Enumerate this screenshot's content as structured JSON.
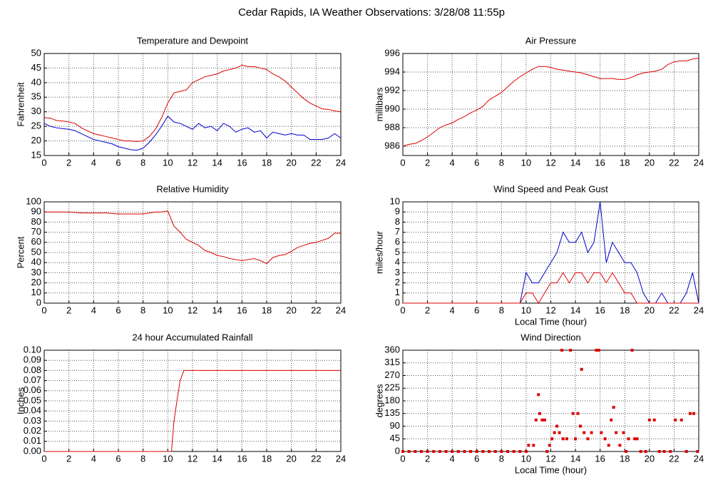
{
  "title": "Cedar Rapids, IA Weather Observations: 3/28/08 11:55p",
  "chart_data": [
    {
      "type": "line",
      "title": "Temperature and Dewpoint",
      "ylabel": "Fahrenheit",
      "x": [
        0,
        0.5,
        1,
        1.5,
        2,
        2.5,
        3,
        3.5,
        4,
        4.5,
        5,
        5.5,
        6,
        6.5,
        7,
        7.5,
        8,
        8.5,
        9,
        9.5,
        10,
        10.5,
        11,
        11.5,
        12,
        12.5,
        13,
        13.5,
        14,
        14.5,
        15,
        15.5,
        16,
        16.5,
        17,
        17.5,
        18,
        18.5,
        19,
        19.5,
        20,
        20.5,
        21,
        21.5,
        22,
        22.5,
        23,
        23.5,
        24
      ],
      "series": [
        {
          "color": "#dd0000",
          "values": [
            28,
            27.8,
            27,
            26.8,
            26.5,
            26,
            24.5,
            23.5,
            22.5,
            22,
            21.5,
            21,
            20.5,
            20,
            20,
            19.8,
            20,
            21.5,
            24,
            28,
            33,
            36.5,
            37,
            37.5,
            40,
            41,
            42,
            42.5,
            43,
            44,
            44.5,
            45,
            46,
            45.5,
            45.5,
            45,
            44.5,
            43,
            42,
            40.5,
            38.5,
            36.5,
            34.5,
            33,
            32,
            31,
            30.8,
            30.3,
            30
          ]
        },
        {
          "color": "#0000cc",
          "values": [
            26,
            25,
            24.5,
            24.2,
            24,
            23.5,
            22.5,
            21.5,
            20.5,
            20,
            19.5,
            19,
            18,
            17.5,
            17,
            16.8,
            17.5,
            19.5,
            22,
            25,
            28.5,
            26.5,
            26,
            25,
            24,
            26,
            24.5,
            25,
            23.5,
            26,
            25,
            23,
            24,
            24.5,
            23,
            23.5,
            21,
            23,
            22.5,
            22,
            22.5,
            22,
            22,
            20.5,
            20.5,
            20.5,
            21,
            22.5,
            21
          ]
        }
      ],
      "xlim": [
        0,
        24
      ],
      "xticks": [
        0,
        2,
        4,
        6,
        8,
        10,
        12,
        14,
        16,
        18,
        20,
        22,
        24
      ],
      "ylim": [
        15,
        50
      ],
      "yticks": [
        15,
        20,
        25,
        30,
        35,
        40,
        45,
        50
      ],
      "grid": true
    },
    {
      "type": "line",
      "title": "Air Pressure",
      "ylabel": "millibars",
      "x": [
        0,
        0.5,
        1,
        1.5,
        2,
        2.5,
        3,
        3.5,
        4,
        4.5,
        5,
        5.5,
        6,
        6.5,
        7,
        7.5,
        8,
        8.5,
        9,
        9.5,
        10,
        10.5,
        11,
        11.5,
        12,
        12.5,
        13,
        13.5,
        14,
        14.5,
        15,
        15.5,
        16,
        16.5,
        17,
        17.5,
        18,
        18.5,
        19,
        19.5,
        20,
        20.5,
        21,
        21.5,
        22,
        22.5,
        23,
        23.5,
        24
      ],
      "series": [
        {
          "color": "#dd0000",
          "values": [
            986,
            986.2,
            986.3,
            986.6,
            987,
            987.5,
            988,
            988.3,
            988.5,
            988.9,
            989.2,
            989.6,
            989.9,
            990.3,
            991,
            991.4,
            991.8,
            992.4,
            993,
            993.5,
            993.9,
            994.3,
            994.6,
            994.6,
            994.5,
            994.3,
            994.2,
            994.1,
            994,
            993.9,
            993.7,
            993.5,
            993.3,
            993.3,
            993.3,
            993.2,
            993.2,
            993.4,
            993.7,
            993.9,
            994,
            994.1,
            994.3,
            994.8,
            995.1,
            995.2,
            995.2,
            995.4,
            995.5
          ]
        }
      ],
      "xlim": [
        0,
        24
      ],
      "xticks": [
        0,
        2,
        4,
        6,
        8,
        10,
        12,
        14,
        16,
        18,
        20,
        22,
        24
      ],
      "ylim": [
        985,
        996
      ],
      "yticks": [
        986,
        988,
        990,
        992,
        994,
        996
      ],
      "grid": true
    },
    {
      "type": "line",
      "title": "Relative Humidity",
      "ylabel": "Percent",
      "x": [
        0,
        0.5,
        1,
        1.5,
        2,
        2.5,
        3,
        3.5,
        4,
        4.5,
        5,
        5.5,
        6,
        6.5,
        7,
        7.5,
        8,
        8.5,
        9,
        9.5,
        10,
        10.5,
        11,
        11.5,
        12,
        12.5,
        13,
        13.5,
        14,
        14.5,
        15,
        15.5,
        16,
        16.5,
        17,
        17.5,
        18,
        18.5,
        19,
        19.5,
        20,
        20.5,
        21,
        21.5,
        22,
        22.5,
        23,
        23.5,
        24
      ],
      "series": [
        {
          "color": "#dd0000",
          "values": [
            90,
            90,
            90,
            90,
            90,
            89.5,
            89,
            89,
            89,
            89,
            89,
            88.5,
            88,
            88,
            88,
            88,
            88,
            89,
            90,
            90,
            91,
            76,
            70,
            63,
            60,
            57,
            52,
            50,
            47,
            46,
            44,
            43,
            42,
            43,
            44,
            42,
            39,
            45,
            47,
            48,
            51,
            55,
            57,
            59,
            60,
            62,
            64,
            69,
            69
          ]
        }
      ],
      "xlim": [
        0,
        24
      ],
      "xticks": [
        0,
        2,
        4,
        6,
        8,
        10,
        12,
        14,
        16,
        18,
        20,
        22,
        24
      ],
      "ylim": [
        0,
        100
      ],
      "yticks": [
        0,
        10,
        20,
        30,
        40,
        50,
        60,
        70,
        80,
        90,
        100
      ],
      "grid": true
    },
    {
      "type": "line",
      "title": "Wind Speed and Peak Gust",
      "ylabel": "miles/hour",
      "xlabel": "Local Time (hour)",
      "x": [
        0,
        0.5,
        1,
        1.5,
        2,
        2.5,
        3,
        3.5,
        4,
        4.5,
        5,
        5.5,
        6,
        6.5,
        7,
        7.5,
        8,
        8.5,
        9,
        9.5,
        10,
        10.5,
        11,
        11.5,
        12,
        12.5,
        13,
        13.5,
        14,
        14.5,
        15,
        15.5,
        16,
        16.5,
        17,
        17.5,
        18,
        18.5,
        19,
        19.5,
        20,
        20.5,
        21,
        21.5,
        22,
        22.5,
        23,
        23.5,
        24
      ],
      "series": [
        {
          "color": "#0000cc",
          "values": [
            0,
            0,
            0,
            0,
            0,
            0,
            0,
            0,
            0,
            0,
            0,
            0,
            0,
            0,
            0,
            0,
            0,
            0,
            0,
            0,
            3,
            2,
            2,
            3,
            4,
            5,
            7,
            6,
            6,
            7,
            5,
            6,
            10,
            4,
            6,
            5,
            4,
            4,
            3,
            1,
            0,
            0,
            1,
            0,
            0,
            0,
            1,
            3,
            0
          ]
        },
        {
          "color": "#dd0000",
          "values": [
            0,
            0,
            0,
            0,
            0,
            0,
            0,
            0,
            0,
            0,
            0,
            0,
            0,
            0,
            0,
            0,
            0,
            0,
            0,
            0,
            1,
            1,
            0,
            1,
            2,
            2,
            3,
            2,
            3,
            3,
            2,
            3,
            3,
            2,
            3,
            2,
            1,
            1,
            0,
            0,
            0,
            0,
            0,
            0,
            0,
            0,
            0,
            0,
            0
          ]
        }
      ],
      "xlim": [
        0,
        24
      ],
      "xticks": [
        0,
        2,
        4,
        6,
        8,
        10,
        12,
        14,
        16,
        18,
        20,
        22,
        24
      ],
      "ylim": [
        0,
        10
      ],
      "yticks": [
        0,
        1,
        2,
        3,
        4,
        5,
        6,
        7,
        8,
        9,
        10
      ],
      "grid": true
    },
    {
      "type": "line",
      "title": "24 hour Accumulated Rainfall",
      "ylabel": "Inches",
      "x": [
        0,
        10.3,
        10.5,
        10.8,
        11,
        11.3,
        24
      ],
      "series": [
        {
          "color": "#dd0000",
          "values": [
            0,
            0,
            0.03,
            0.055,
            0.07,
            0.08,
            0.08
          ]
        }
      ],
      "xlim": [
        0,
        24
      ],
      "xticks": [
        0,
        2,
        4,
        6,
        8,
        10,
        12,
        14,
        16,
        18,
        20,
        22,
        24
      ],
      "ylim": [
        0,
        0.1
      ],
      "yticks": [
        {
          "value": 0,
          "label": "0.00"
        },
        {
          "value": 0.01,
          "label": "0.01"
        },
        {
          "value": 0.02,
          "label": "0.02"
        },
        {
          "value": 0.03,
          "label": "0.03"
        },
        {
          "value": 0.04,
          "label": "0.04"
        },
        {
          "value": 0.05,
          "label": "0.05"
        },
        {
          "value": 0.06,
          "label": "0.06"
        },
        {
          "value": 0.07,
          "label": "0.07"
        },
        {
          "value": 0.08,
          "label": "0.08"
        },
        {
          "value": 0.09,
          "label": "0.09"
        },
        {
          "value": 0.1,
          "label": "0.10"
        }
      ],
      "grid": true
    },
    {
      "type": "scatter",
      "title": "Wind Direction",
      "ylabel": "degrees",
      "xlabel": "Local Time (hour)",
      "x": [
        0,
        0.5,
        1,
        1.5,
        2,
        2.5,
        3,
        3.5,
        4,
        4.5,
        5,
        5.5,
        6,
        6.5,
        7,
        7.5,
        8,
        8.5,
        9,
        9.5,
        10,
        10.2,
        10.6,
        10.8,
        11,
        11.1,
        11.3,
        11.5,
        11.7,
        11.9,
        12.1,
        12.3,
        12.5,
        12.7,
        12.9,
        13,
        13.3,
        13.6,
        13.8,
        14,
        14.2,
        14.4,
        14.5,
        14.7,
        15,
        15.3,
        15.7,
        15.9,
        16.1,
        16.4,
        16.7,
        16.9,
        17.1,
        17.3,
        17.6,
        17.9,
        18.1,
        18.3,
        18.6,
        18.8,
        19,
        19.3,
        19.7,
        20,
        20.4,
        20.8,
        21.2,
        21.7,
        22.1,
        22.6,
        23,
        23.3,
        23.6,
        23.9
      ],
      "series": [
        {
          "color": "#dd0000",
          "values": [
            0,
            0,
            0,
            0,
            0,
            0,
            0,
            0,
            0,
            0,
            0,
            0,
            0,
            0,
            0,
            0,
            0,
            0,
            0,
            0,
            0,
            22,
            22,
            112,
            202,
            135,
            112,
            112,
            0,
            22,
            45,
            67,
            90,
            67,
            360,
            45,
            45,
            360,
            135,
            45,
            135,
            90,
            292,
            67,
            45,
            67,
            360,
            360,
            67,
            45,
            22,
            112,
            157,
            67,
            22,
            67,
            0,
            45,
            360,
            45,
            45,
            0,
            0,
            112,
            112,
            0,
            0,
            0,
            112,
            112,
            0,
            135,
            135,
            0
          ]
        }
      ],
      "xlim": [
        0,
        24
      ],
      "xticks": [
        0,
        2,
        4,
        6,
        8,
        10,
        12,
        14,
        16,
        18,
        20,
        22,
        24
      ],
      "ylim": [
        0,
        360
      ],
      "yticks": [
        0,
        45,
        90,
        135,
        180,
        225,
        270,
        315,
        360
      ],
      "grid": true
    }
  ]
}
